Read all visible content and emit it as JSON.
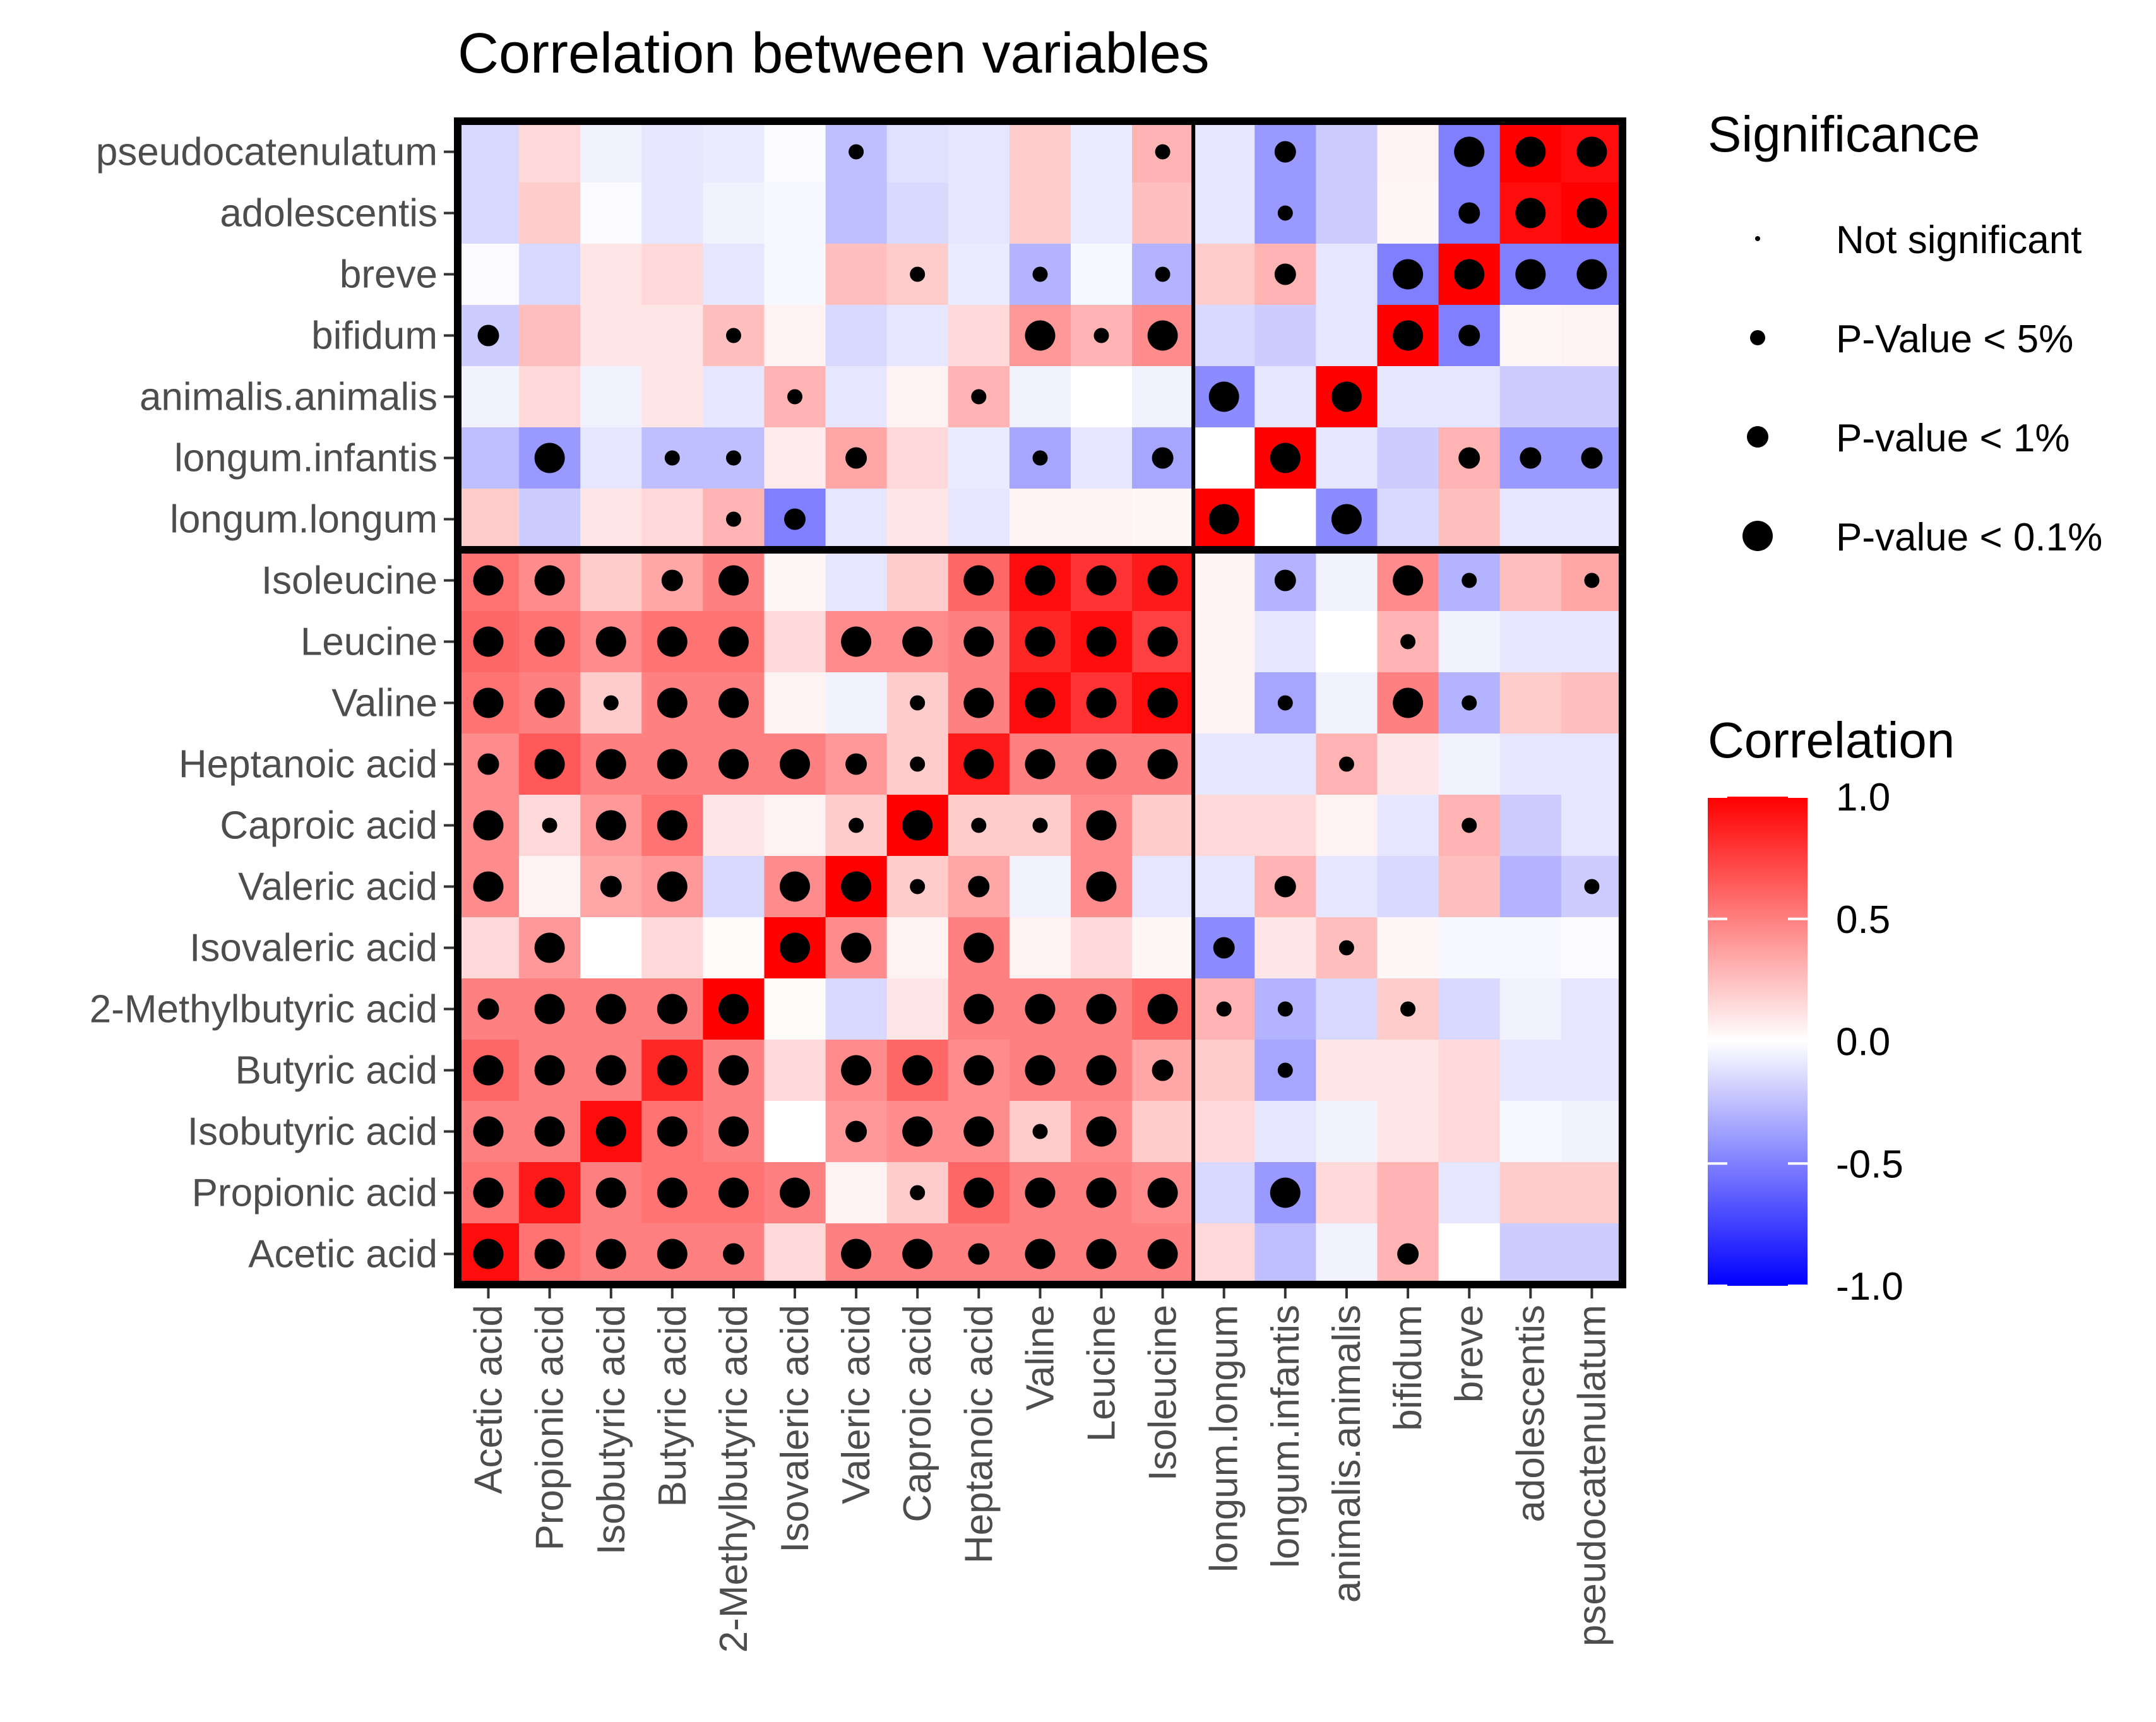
{
  "chart_data": {
    "type": "heatmap",
    "title": "Correlation between variables",
    "rows": [
      "pseudocatenulatum",
      "adolescentis",
      "breve",
      "bifidum",
      "animalis.animalis",
      "longum.infantis",
      "longum.longum",
      "Isoleucine",
      "Leucine",
      "Valine",
      "Heptanoic acid",
      "Caproic acid",
      "Valeric acid",
      "Isovaleric acid",
      "2-Methylbutyric acid",
      "Butyric acid",
      "Isobutyric acid",
      "Propionic acid",
      "Acetic acid"
    ],
    "columns": [
      "Acetic acid",
      "Propionic acid",
      "Isobutyric acid",
      "Butyric acid",
      "2-Methylbutyric acid",
      "Isovaleric acid",
      "Valeric acid",
      "Caproic acid",
      "Heptanoic acid",
      "Valine",
      "Leucine",
      "Isoleucine",
      "longum.longum",
      "longum.infantis",
      "animalis.animalis",
      "bifidum",
      "breve",
      "adolescentis",
      "pseudocatenulatum"
    ],
    "correlation": [
      [
        -0.15,
        0.15,
        -0.05,
        -0.1,
        -0.08,
        -0.02,
        -0.25,
        -0.12,
        -0.1,
        0.2,
        -0.08,
        0.3,
        -0.1,
        -0.4,
        -0.2,
        0.05,
        -0.5,
        1.0,
        0.95
      ],
      [
        -0.15,
        0.2,
        -0.02,
        -0.1,
        -0.05,
        -0.03,
        -0.25,
        -0.15,
        -0.1,
        0.2,
        -0.08,
        0.25,
        -0.1,
        -0.4,
        -0.2,
        0.03,
        -0.5,
        0.95,
        1.0
      ],
      [
        -0.02,
        -0.15,
        0.1,
        0.15,
        -0.1,
        -0.03,
        0.25,
        0.2,
        -0.08,
        -0.3,
        -0.03,
        -0.3,
        0.2,
        0.3,
        -0.1,
        -0.5,
        1.0,
        -0.5,
        -0.5
      ],
      [
        -0.2,
        0.25,
        0.1,
        0.1,
        0.25,
        0.05,
        -0.15,
        -0.1,
        0.15,
        0.4,
        0.3,
        0.45,
        -0.15,
        -0.2,
        -0.1,
        1.0,
        -0.5,
        0.03,
        0.05
      ],
      [
        -0.05,
        0.15,
        -0.05,
        0.1,
        -0.1,
        0.3,
        -0.1,
        0.05,
        0.3,
        -0.05,
        0.0,
        -0.05,
        -0.45,
        -0.1,
        1.0,
        -0.1,
        -0.1,
        -0.2,
        -0.2
      ],
      [
        -0.25,
        -0.4,
        -0.1,
        -0.25,
        -0.25,
        0.08,
        0.35,
        0.15,
        -0.08,
        -0.35,
        -0.1,
        -0.35,
        0.0,
        1.0,
        -0.1,
        -0.2,
        0.3,
        -0.4,
        -0.4
      ],
      [
        0.2,
        -0.2,
        0.1,
        0.15,
        0.3,
        -0.5,
        -0.1,
        0.1,
        -0.1,
        0.05,
        0.05,
        0.03,
        1.0,
        0.0,
        -0.45,
        -0.15,
        0.25,
        -0.1,
        -0.1
      ],
      [
        0.55,
        0.45,
        0.2,
        0.35,
        0.5,
        0.03,
        -0.1,
        0.2,
        0.6,
        0.95,
        0.8,
        0.9,
        0.05,
        -0.3,
        -0.05,
        0.45,
        -0.3,
        0.25,
        0.35
      ],
      [
        0.6,
        0.55,
        0.45,
        0.55,
        0.55,
        0.15,
        0.45,
        0.45,
        0.5,
        0.85,
        0.95,
        0.75,
        0.05,
        -0.1,
        0.0,
        0.3,
        -0.05,
        -0.1,
        -0.1
      ],
      [
        0.55,
        0.5,
        0.2,
        0.5,
        0.5,
        0.05,
        -0.05,
        0.2,
        0.5,
        0.95,
        0.8,
        0.95,
        0.05,
        -0.35,
        -0.05,
        0.5,
        -0.3,
        0.2,
        0.25
      ],
      [
        0.45,
        0.65,
        0.5,
        0.5,
        0.5,
        0.5,
        0.4,
        0.2,
        0.9,
        0.5,
        0.5,
        0.5,
        -0.1,
        -0.1,
        0.3,
        0.1,
        -0.05,
        -0.1,
        -0.1
      ],
      [
        0.45,
        0.15,
        0.4,
        0.55,
        0.1,
        0.05,
        0.2,
        1.0,
        0.2,
        0.2,
        0.45,
        0.2,
        0.15,
        0.15,
        0.05,
        -0.1,
        0.3,
        -0.2,
        -0.1
      ],
      [
        0.45,
        0.05,
        0.35,
        0.4,
        -0.15,
        0.45,
        1.0,
        0.2,
        0.35,
        -0.05,
        0.45,
        -0.1,
        -0.1,
        0.3,
        -0.1,
        -0.15,
        0.25,
        -0.3,
        -0.2
      ],
      [
        0.15,
        0.4,
        0.0,
        0.15,
        0.02,
        1.0,
        0.45,
        0.05,
        0.5,
        0.05,
        0.15,
        0.03,
        -0.45,
        0.1,
        0.25,
        0.03,
        -0.03,
        -0.03,
        -0.02
      ],
      [
        0.5,
        0.5,
        0.5,
        0.5,
        1.0,
        0.02,
        -0.15,
        0.1,
        0.5,
        0.5,
        0.5,
        0.6,
        0.3,
        -0.3,
        -0.15,
        0.2,
        -0.15,
        -0.05,
        -0.1
      ],
      [
        0.6,
        0.5,
        0.5,
        0.85,
        0.5,
        0.15,
        0.45,
        0.6,
        0.45,
        0.5,
        0.5,
        0.35,
        0.2,
        -0.35,
        0.1,
        0.1,
        0.15,
        -0.1,
        -0.1
      ],
      [
        0.5,
        0.5,
        0.95,
        0.55,
        0.5,
        0.0,
        0.4,
        0.45,
        0.45,
        0.2,
        0.45,
        0.2,
        0.15,
        -0.1,
        -0.05,
        0.1,
        0.15,
        -0.03,
        -0.05
      ],
      [
        0.55,
        0.9,
        0.5,
        0.55,
        0.55,
        0.5,
        0.05,
        0.2,
        0.6,
        0.5,
        0.5,
        0.45,
        -0.15,
        -0.4,
        0.15,
        0.3,
        -0.1,
        0.2,
        0.2
      ],
      [
        0.95,
        0.55,
        0.5,
        0.5,
        0.5,
        0.15,
        0.5,
        0.5,
        0.5,
        0.5,
        0.5,
        0.5,
        0.15,
        -0.25,
        -0.05,
        0.3,
        0.0,
        -0.2,
        -0.2
      ]
    ],
    "significance_codes": "0 = not significant, 1 = P-Value < 5%, 2 = P-value < 1%, 3 = P-value < 0.1%",
    "significance": [
      [
        0,
        0,
        0,
        0,
        0,
        0,
        1,
        0,
        0,
        0,
        0,
        1,
        0,
        2,
        0,
        0,
        3,
        3,
        3
      ],
      [
        0,
        0,
        0,
        0,
        0,
        0,
        0,
        0,
        0,
        0,
        0,
        0,
        0,
        1,
        0,
        0,
        2,
        3,
        3
      ],
      [
        0,
        0,
        0,
        0,
        0,
        0,
        0,
        1,
        0,
        1,
        0,
        1,
        0,
        2,
        0,
        3,
        3,
        3,
        3
      ],
      [
        2,
        0,
        0,
        0,
        1,
        0,
        0,
        0,
        0,
        3,
        1,
        3,
        0,
        0,
        0,
        3,
        2,
        0,
        0
      ],
      [
        0,
        0,
        0,
        0,
        0,
        1,
        0,
        0,
        1,
        0,
        0,
        0,
        3,
        0,
        3,
        0,
        0,
        0,
        0
      ],
      [
        0,
        3,
        0,
        1,
        1,
        0,
        2,
        0,
        0,
        1,
        0,
        2,
        0,
        3,
        0,
        0,
        2,
        2,
        2
      ],
      [
        0,
        0,
        0,
        0,
        1,
        2,
        0,
        0,
        0,
        0,
        0,
        0,
        3,
        0,
        3,
        0,
        0,
        0,
        0
      ],
      [
        3,
        3,
        0,
        2,
        3,
        0,
        0,
        0,
        3,
        3,
        3,
        3,
        0,
        2,
        0,
        3,
        1,
        0,
        1
      ],
      [
        3,
        3,
        3,
        3,
        3,
        0,
        3,
        3,
        3,
        3,
        3,
        3,
        0,
        0,
        0,
        1,
        0,
        0,
        0
      ],
      [
        3,
        3,
        1,
        3,
        3,
        0,
        0,
        1,
        3,
        3,
        3,
        3,
        0,
        1,
        0,
        3,
        1,
        0,
        0
      ],
      [
        2,
        3,
        3,
        3,
        3,
        3,
        2,
        1,
        3,
        3,
        3,
        3,
        0,
        0,
        1,
        0,
        0,
        0,
        0
      ],
      [
        3,
        1,
        3,
        3,
        0,
        0,
        1,
        3,
        1,
        1,
        3,
        0,
        0,
        0,
        0,
        0,
        1,
        0,
        0
      ],
      [
        3,
        0,
        2,
        3,
        0,
        3,
        3,
        1,
        2,
        0,
        3,
        0,
        0,
        2,
        0,
        0,
        0,
        0,
        1
      ],
      [
        0,
        3,
        0,
        0,
        0,
        3,
        3,
        0,
        3,
        0,
        0,
        0,
        2,
        0,
        1,
        0,
        0,
        0,
        0
      ],
      [
        2,
        3,
        3,
        3,
        3,
        0,
        0,
        0,
        3,
        3,
        3,
        3,
        1,
        1,
        0,
        1,
        0,
        0,
        0
      ],
      [
        3,
        3,
        3,
        3,
        3,
        0,
        3,
        3,
        3,
        3,
        3,
        2,
        0,
        1,
        0,
        0,
        0,
        0,
        0
      ],
      [
        3,
        3,
        3,
        3,
        3,
        0,
        2,
        3,
        3,
        1,
        3,
        0,
        0,
        0,
        0,
        0,
        0,
        0,
        0
      ],
      [
        3,
        3,
        3,
        3,
        3,
        3,
        0,
        1,
        3,
        3,
        3,
        3,
        0,
        3,
        0,
        0,
        0,
        0,
        0
      ],
      [
        3,
        3,
        3,
        3,
        2,
        0,
        3,
        3,
        2,
        3,
        3,
        3,
        0,
        0,
        0,
        2,
        0,
        0,
        0
      ]
    ],
    "legend_significance": {
      "title": "Significance",
      "items": [
        "Not significant",
        "P-Value < 5%",
        "P-value < 1%",
        "P-value < 0.1%"
      ]
    },
    "legend_correlation": {
      "title": "Correlation",
      "ticks": [
        "1.0",
        "0.5",
        "0.0",
        "-0.5",
        "-1.0"
      ],
      "range": [
        -1,
        1
      ],
      "colors": {
        "low": "#0000ff",
        "mid": "#ffffff",
        "high": "#ff0000"
      }
    },
    "block_split": {
      "after_row": 7,
      "after_column": 12
    }
  }
}
